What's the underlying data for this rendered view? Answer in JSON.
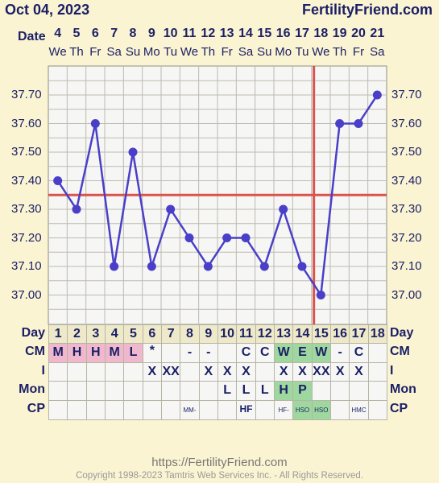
{
  "header": {
    "date": "Oct 04, 2023",
    "site": "FertilityFriend.com"
  },
  "date_label": "Date",
  "dates": [
    "4",
    "5",
    "6",
    "7",
    "8",
    "9",
    "10",
    "11",
    "12",
    "13",
    "14",
    "15",
    "16",
    "17",
    "18",
    "19",
    "20",
    "21"
  ],
  "weekdays": [
    "We",
    "Th",
    "Fr",
    "Sa",
    "Su",
    "Mo",
    "Tu",
    "We",
    "Th",
    "Fr",
    "Sa",
    "Su",
    "Mo",
    "Tu",
    "We",
    "Th",
    "Fr",
    "Sa"
  ],
  "chart_data": {
    "type": "line",
    "x": [
      1,
      2,
      3,
      4,
      5,
      6,
      7,
      8,
      9,
      10,
      11,
      12,
      13,
      14,
      15,
      16,
      17,
      18
    ],
    "values": [
      37.4,
      37.3,
      37.6,
      37.1,
      37.5,
      37.1,
      37.3,
      37.2,
      37.1,
      37.2,
      37.2,
      37.1,
      37.3,
      37.1,
      37.0,
      37.6,
      37.6,
      37.7
    ],
    "y_ticks": [
      "37.70",
      "37.60",
      "37.50",
      "37.40",
      "37.30",
      "37.20",
      "37.10",
      "37.00"
    ],
    "ylim": [
      36.9,
      37.8
    ],
    "coverline": 37.35,
    "ovulation_day": 15,
    "grid": true,
    "colors": {
      "line": "#4a3fc8",
      "coverline": "#d9534f",
      "ovulation": "#d9534f",
      "grid": "#bdbab0",
      "plot_bg": "#f6f6f4"
    }
  },
  "table": {
    "row_labels": [
      "Day",
      "CM",
      "I",
      "Mon",
      "CP"
    ],
    "days": [
      "1",
      "2",
      "3",
      "4",
      "5",
      "6",
      "7",
      "8",
      "9",
      "10",
      "11",
      "12",
      "13",
      "14",
      "15",
      "16",
      "17",
      "18"
    ],
    "cm": [
      "M",
      "H",
      "H",
      "M",
      "L",
      "*",
      "",
      "-",
      "-",
      "",
      "C",
      "C",
      "W",
      "E",
      "W",
      "-",
      "C",
      ""
    ],
    "intercourse": [
      "",
      "",
      "",
      "",
      "",
      "X",
      "XX",
      "",
      "X",
      "X",
      "X",
      "",
      "X",
      "X",
      "XX",
      "X",
      "X",
      ""
    ],
    "monitor": [
      "",
      "",
      "",
      "",
      "",
      "",
      "",
      "",
      "",
      "L",
      "L",
      "L",
      "H",
      "P",
      "",
      "",
      "",
      ""
    ],
    "cp": [
      "",
      "",
      "",
      "",
      "",
      "",
      "",
      "MM-",
      "",
      "",
      "HF",
      "",
      "HF-",
      "HSO",
      "HSO",
      "",
      "HMC",
      ""
    ],
    "colors": {
      "menses": "#f0b8cc",
      "fertile": "#9ed89e",
      "day_bg": "#eee9c8"
    }
  },
  "footer": {
    "url": "https://FertilityFriend.com",
    "copyright": "Copyright 1998-2023 Tamtris Web Services Inc. - All Rights Reserved."
  }
}
